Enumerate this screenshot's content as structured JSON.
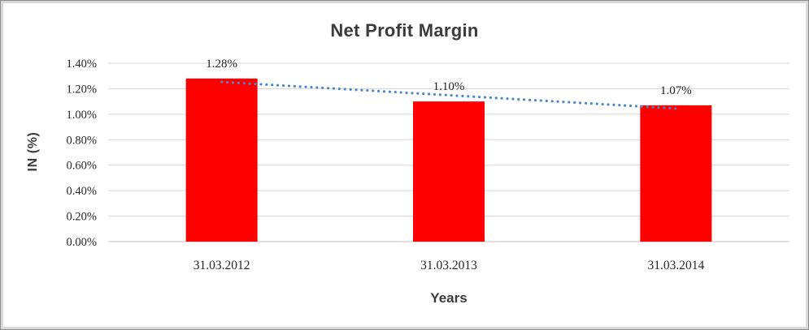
{
  "chart_data": {
    "type": "bar",
    "title": "Net Profit Margin",
    "xlabel": "Years",
    "ylabel": "IN (%)",
    "categories": [
      "31.03.2012",
      "31.03.2013",
      "31.03.2014"
    ],
    "values": [
      1.28,
      1.1,
      1.07
    ],
    "value_labels": [
      "1.28%",
      "1.10%",
      "1.07%"
    ],
    "ylim": [
      0,
      1.4
    ],
    "yticks": [
      {
        "label": "0.00%",
        "value": 0.0
      },
      {
        "label": "0.20%",
        "value": 0.2
      },
      {
        "label": "0.40%",
        "value": 0.4
      },
      {
        "label": "0.60%",
        "value": 0.6
      },
      {
        "label": "0.80%",
        "value": 0.8
      },
      {
        "label": "1.00%",
        "value": 1.0
      },
      {
        "label": "1.20%",
        "value": 1.2
      },
      {
        "label": "1.40%",
        "value": 1.4
      }
    ],
    "grid": true,
    "legend": false,
    "bar_color": "#ff0000",
    "trendline": {
      "type": "linear",
      "style": "dotted",
      "color": "#4a86c8",
      "start_value": 1.253,
      "end_value": 1.045
    },
    "colors": {
      "gridline": "#d6d6d6",
      "axis_line": "#bfbfbf",
      "tick_text": "#262626",
      "title_text": "#3b3b3b"
    }
  }
}
